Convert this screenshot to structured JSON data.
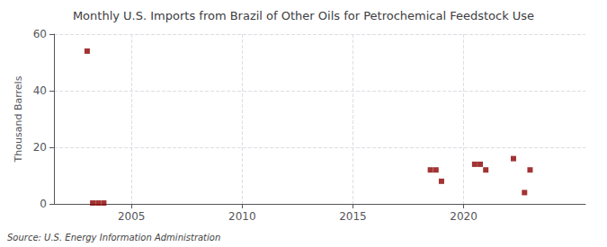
{
  "chart_data": {
    "type": "scatter",
    "title": "Monthly U.S. Imports from Brazil of Other Oils for Petrochemical Feedstock Use",
    "ylabel": "Thousand Barrels",
    "source": "Source: U.S. Energy Information Administration",
    "x": [
      2003.0,
      2003.25,
      2003.5,
      2003.75,
      2018.5,
      2018.75,
      2019.0,
      2020.5,
      2020.75,
      2021.0,
      2022.25,
      2022.75,
      2023.0
    ],
    "values": [
      54,
      0.3,
      0.3,
      0.3,
      12,
      12,
      8,
      14,
      14,
      12,
      16,
      4,
      12
    ],
    "color": "#8b0000",
    "marker": "square",
    "xlim": [
      2001.5,
      2025.5
    ],
    "xticks": [
      2005,
      2010,
      2015,
      2020
    ],
    "ylim": [
      0,
      60
    ],
    "yticks": [
      0,
      20,
      40,
      60
    ],
    "grid": true
  }
}
